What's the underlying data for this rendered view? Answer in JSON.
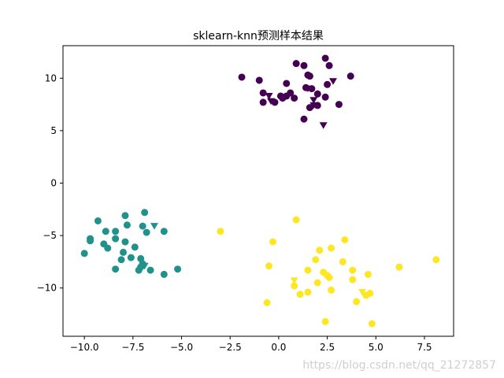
{
  "chart_data": {
    "type": "scatter",
    "title": "sklearn-knn预测样本结果",
    "xlabel": "",
    "ylabel": "",
    "xlim": [
      -11.1,
      9.0
    ],
    "ylim": [
      -14.6,
      13.1
    ],
    "xticks": [
      -10.0,
      -7.5,
      -5.0,
      -2.5,
      0.0,
      2.5,
      5.0,
      7.5
    ],
    "xtick_labels": [
      "−10.0",
      "−7.5",
      "−5.0",
      "−2.5",
      "0.0",
      "2.5",
      "5.0",
      "7.5"
    ],
    "yticks": [
      -10,
      -5,
      0,
      5,
      10
    ],
    "ytick_labels": [
      "−10",
      "−5",
      "0",
      "5",
      "10"
    ],
    "grid": false,
    "series": [
      {
        "class": 0,
        "marker": "circle",
        "color": "#440154",
        "points": [
          [
            2.4,
            11.9
          ],
          [
            0.9,
            11.4
          ],
          [
            1.3,
            11.2
          ],
          [
            2.6,
            11.2
          ],
          [
            1.5,
            10.3
          ],
          [
            1.6,
            10.2
          ],
          [
            -1.9,
            10.1
          ],
          [
            -1.0,
            9.8
          ],
          [
            3.7,
            10.2
          ],
          [
            0.4,
            9.5
          ],
          [
            2.5,
            9.4
          ],
          [
            1.4,
            9.1
          ],
          [
            1.7,
            9.0
          ],
          [
            -0.8,
            8.6
          ],
          [
            0.6,
            8.6
          ],
          [
            2.0,
            8.5
          ],
          [
            0.1,
            8.3
          ],
          [
            0.2,
            8.1
          ],
          [
            0.4,
            8.3
          ],
          [
            0.8,
            8.1
          ],
          [
            2.4,
            8.2
          ],
          [
            -0.8,
            7.7
          ],
          [
            -0.2,
            7.7
          ],
          [
            1.6,
            7.2
          ],
          [
            2.0,
            7.4
          ],
          [
            3.1,
            7.5
          ],
          [
            1.3,
            6.1
          ]
        ]
      },
      {
        "class": 1,
        "marker": "circle",
        "color": "#21918c",
        "points": [
          [
            -6.9,
            -2.8
          ],
          [
            -7.9,
            -3.1
          ],
          [
            -9.3,
            -3.6
          ],
          [
            -7.8,
            -4.0
          ],
          [
            -7.0,
            -4.1
          ],
          [
            -9.7,
            -5.3
          ],
          [
            -9.7,
            -5.5
          ],
          [
            -8.9,
            -4.6
          ],
          [
            -8.4,
            -4.6
          ],
          [
            -6.8,
            -4.7
          ],
          [
            -5.9,
            -4.6
          ],
          [
            -8.4,
            -5.3
          ],
          [
            -7.9,
            -5.6
          ],
          [
            -9.0,
            -5.8
          ],
          [
            -8.8,
            -6.2
          ],
          [
            -7.4,
            -6.1
          ],
          [
            -10.0,
            -6.7
          ],
          [
            -8.0,
            -6.6
          ],
          [
            -7.6,
            -7.1
          ],
          [
            -7.1,
            -7.2
          ],
          [
            -8.1,
            -7.3
          ],
          [
            -7.0,
            -7.7
          ],
          [
            -7.1,
            -8.0
          ],
          [
            -8.4,
            -8.2
          ],
          [
            -7.2,
            -8.3
          ],
          [
            -6.6,
            -8.3
          ],
          [
            -5.2,
            -8.2
          ],
          [
            -5.9,
            -8.7
          ]
        ]
      },
      {
        "class": 2,
        "marker": "circle",
        "color": "#fde725",
        "points": [
          [
            0.9,
            -3.5
          ],
          [
            -3.0,
            -4.6
          ],
          [
            -0.3,
            -5.6
          ],
          [
            2.1,
            -6.4
          ],
          [
            2.7,
            -6.2
          ],
          [
            3.4,
            -5.4
          ],
          [
            1.9,
            -7.3
          ],
          [
            3.3,
            -7.5
          ],
          [
            -0.5,
            -7.9
          ],
          [
            1.5,
            -8.3
          ],
          [
            3.8,
            -8.3
          ],
          [
            2.3,
            -8.5
          ],
          [
            2.5,
            -8.8
          ],
          [
            2.6,
            -9.0
          ],
          [
            4.6,
            -8.7
          ],
          [
            3.8,
            -9.2
          ],
          [
            2.0,
            -9.5
          ],
          [
            0.8,
            -9.8
          ],
          [
            2.7,
            -10.2
          ],
          [
            1.5,
            -10.4
          ],
          [
            1.1,
            -10.6
          ],
          [
            4.7,
            -10.5
          ],
          [
            4.5,
            -10.7
          ],
          [
            4.0,
            -11.3
          ],
          [
            -0.6,
            -11.4
          ],
          [
            6.2,
            -8.0
          ],
          [
            8.1,
            -7.3
          ],
          [
            2.4,
            -13.2
          ],
          [
            4.8,
            -13.4
          ]
        ]
      },
      {
        "class": 0,
        "marker": "triangle-down",
        "color": "#440154",
        "points": [
          [
            2.8,
            9.7
          ],
          [
            1.5,
            9.0
          ],
          [
            -0.5,
            8.3
          ],
          [
            -0.4,
            7.8
          ],
          [
            1.8,
            7.9
          ],
          [
            1.8,
            7.4
          ],
          [
            2.3,
            5.5
          ]
        ]
      },
      {
        "class": 1,
        "marker": "triangle-down",
        "color": "#21918c",
        "points": [
          [
            -6.4,
            -4.1
          ],
          [
            -6.9,
            -7.9
          ]
        ]
      },
      {
        "class": 2,
        "marker": "triangle-down",
        "color": "#fde725",
        "points": [
          [
            0.8,
            -9.3
          ],
          [
            4.3,
            -10.4
          ]
        ]
      }
    ]
  },
  "watermark": "https://blog.csdn.net/qq_21272857"
}
